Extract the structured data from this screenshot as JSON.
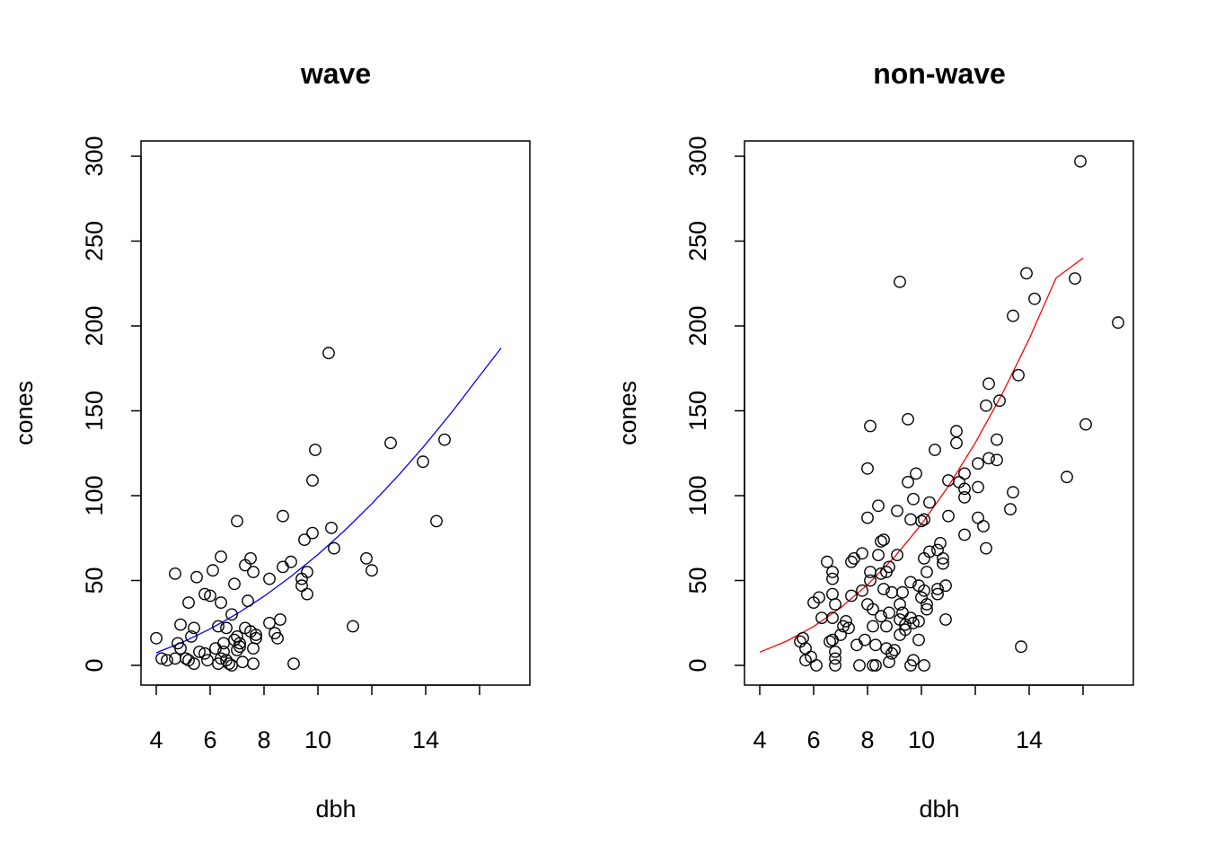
{
  "chart_data": [
    {
      "type": "scatter",
      "title": "wave",
      "xlabel": "dbh",
      "ylabel": "cones",
      "xlim": [
        4,
        17.4
      ],
      "ylim": [
        0,
        300
      ],
      "x_ticks": [
        4,
        6,
        8,
        10,
        14
      ],
      "y_ticks": [
        0,
        50,
        100,
        150,
        200,
        250,
        300
      ],
      "grid": false,
      "legend": "none",
      "point_style": "open-circle",
      "fit_color": "#0000ff",
      "series": [
        {
          "points": [
            [
              4.0,
              16
            ],
            [
              4.2,
              4
            ],
            [
              4.4,
              3
            ],
            [
              4.7,
              4
            ],
            [
              4.8,
              13
            ],
            [
              4.9,
              10
            ],
            [
              4.7,
              54
            ],
            [
              4.9,
              24
            ],
            [
              5.1,
              4
            ],
            [
              5.2,
              37
            ],
            [
              5.3,
              17
            ],
            [
              5.4,
              22
            ],
            [
              5.5,
              52
            ],
            [
              5.6,
              8
            ],
            [
              5.4,
              1
            ],
            [
              5.2,
              3
            ],
            [
              5.8,
              7
            ],
            [
              5.9,
              3
            ],
            [
              5.8,
              42
            ],
            [
              6.0,
              41
            ],
            [
              6.1,
              56
            ],
            [
              6.2,
              10
            ],
            [
              6.3,
              23
            ],
            [
              6.4,
              64
            ],
            [
              6.4,
              37
            ],
            [
              6.5,
              13
            ],
            [
              6.5,
              8
            ],
            [
              6.6,
              22
            ],
            [
              6.6,
              3
            ],
            [
              6.7,
              1
            ],
            [
              6.8,
              30
            ],
            [
              6.9,
              48
            ],
            [
              7.0,
              85
            ],
            [
              6.9,
              15
            ],
            [
              7.0,
              9
            ],
            [
              7.1,
              11
            ],
            [
              7.2,
              2
            ],
            [
              7.3,
              22
            ],
            [
              7.3,
              59
            ],
            [
              7.4,
              38
            ],
            [
              7.5,
              63
            ],
            [
              7.6,
              55
            ],
            [
              7.7,
              16
            ],
            [
              7.6,
              10
            ],
            [
              7.6,
              1
            ],
            [
              7.5,
              20
            ],
            [
              7.7,
              18
            ],
            [
              6.3,
              1
            ],
            [
              6.4,
              4
            ],
            [
              6.8,
              0
            ],
            [
              7.0,
              17
            ],
            [
              7.1,
              13
            ],
            [
              8.2,
              25
            ],
            [
              8.2,
              51
            ],
            [
              8.4,
              19
            ],
            [
              8.5,
              16
            ],
            [
              8.6,
              27
            ],
            [
              8.7,
              88
            ],
            [
              8.7,
              58
            ],
            [
              9.0,
              61
            ],
            [
              9.1,
              1
            ],
            [
              9.4,
              47
            ],
            [
              9.4,
              51
            ],
            [
              9.5,
              74
            ],
            [
              9.6,
              42
            ],
            [
              9.6,
              55
            ],
            [
              9.8,
              78
            ],
            [
              9.8,
              109
            ],
            [
              9.9,
              127
            ],
            [
              10.4,
              184
            ],
            [
              10.5,
              81
            ],
            [
              10.6,
              69
            ],
            [
              11.3,
              23
            ],
            [
              11.8,
              63
            ],
            [
              12.0,
              56
            ],
            [
              12.7,
              131
            ],
            [
              13.9,
              120
            ],
            [
              14.4,
              85
            ],
            [
              14.7,
              133
            ]
          ]
        }
      ],
      "fit_curve": [
        [
          4.0,
          7.4
        ],
        [
          5.0,
          13.8
        ],
        [
          6.0,
          21.5
        ],
        [
          7.0,
          30.4
        ],
        [
          8.0,
          40.7
        ],
        [
          9.0,
          52.4
        ],
        [
          10.0,
          65.3
        ],
        [
          11.0,
          79.6
        ],
        [
          12.0,
          95.2
        ],
        [
          13.0,
          112.1
        ],
        [
          14.0,
          130.3
        ],
        [
          15.0,
          149.8
        ],
        [
          16.0,
          170.6
        ],
        [
          16.8,
          187.0
        ]
      ]
    },
    {
      "type": "scatter",
      "title": "non-wave",
      "xlabel": "dbh",
      "ylabel": "cones",
      "xlim": [
        4,
        17.4
      ],
      "ylim": [
        0,
        300
      ],
      "x_ticks": [
        4,
        6,
        8,
        10,
        14
      ],
      "y_ticks": [
        0,
        50,
        100,
        150,
        200,
        250,
        300
      ],
      "grid": false,
      "legend": "none",
      "point_style": "open-circle",
      "fit_color": "#ff0000",
      "series": [
        {
          "points": [
            [
              5.5,
              14
            ],
            [
              5.6,
              16
            ],
            [
              5.7,
              10
            ],
            [
              5.7,
              3
            ],
            [
              5.9,
              5
            ],
            [
              6.0,
              37
            ],
            [
              6.1,
              0
            ],
            [
              6.2,
              40
            ],
            [
              6.3,
              28
            ],
            [
              6.5,
              61
            ],
            [
              6.6,
              14
            ],
            [
              6.7,
              15
            ],
            [
              6.7,
              28
            ],
            [
              6.7,
              42
            ],
            [
              6.8,
              36
            ],
            [
              6.7,
              51
            ],
            [
              6.7,
              55
            ],
            [
              6.8,
              8
            ],
            [
              6.8,
              4
            ],
            [
              6.8,
              0
            ],
            [
              7.0,
              18
            ],
            [
              7.1,
              23
            ],
            [
              7.2,
              26
            ],
            [
              7.3,
              22
            ],
            [
              7.4,
              61
            ],
            [
              7.5,
              63
            ],
            [
              7.4,
              41
            ],
            [
              7.6,
              12
            ],
            [
              7.7,
              0
            ],
            [
              7.8,
              44
            ],
            [
              7.8,
              66
            ],
            [
              7.9,
              15
            ],
            [
              8.0,
              36
            ],
            [
              8.0,
              87
            ],
            [
              8.0,
              116
            ],
            [
              8.1,
              141
            ],
            [
              8.1,
              55
            ],
            [
              8.1,
              50
            ],
            [
              8.2,
              23
            ],
            [
              8.2,
              0
            ],
            [
              8.2,
              33
            ],
            [
              8.3,
              12
            ],
            [
              8.3,
              0
            ],
            [
              8.4,
              65
            ],
            [
              8.4,
              94
            ],
            [
              8.5,
              73
            ],
            [
              8.6,
              74
            ],
            [
              8.5,
              54
            ],
            [
              8.7,
              55
            ],
            [
              8.8,
              58
            ],
            [
              8.8,
              31
            ],
            [
              8.9,
              43
            ],
            [
              8.5,
              29
            ],
            [
              8.6,
              45
            ],
            [
              8.7,
              23
            ],
            [
              8.7,
              10
            ],
            [
              8.8,
              2
            ],
            [
              8.9,
              7
            ],
            [
              9.0,
              9
            ],
            [
              9.1,
              91
            ],
            [
              9.1,
              65
            ],
            [
              9.2,
              226
            ],
            [
              9.2,
              27
            ],
            [
              9.2,
              36
            ],
            [
              9.3,
              31
            ],
            [
              9.3,
              43
            ],
            [
              9.2,
              18
            ],
            [
              9.4,
              21
            ],
            [
              9.4,
              24
            ],
            [
              9.5,
              145
            ],
            [
              9.5,
              108
            ],
            [
              9.6,
              86
            ],
            [
              9.6,
              49
            ],
            [
              9.6,
              28
            ],
            [
              9.7,
              98
            ],
            [
              9.7,
              25
            ],
            [
              9.7,
              3
            ],
            [
              9.6,
              0
            ],
            [
              9.8,
              113
            ],
            [
              9.9,
              47
            ],
            [
              9.9,
              26
            ],
            [
              9.9,
              15
            ],
            [
              10.0,
              40
            ],
            [
              10.0,
              85
            ],
            [
              10.1,
              86
            ],
            [
              10.1,
              63
            ],
            [
              10.1,
              44
            ],
            [
              10.1,
              0
            ],
            [
              10.2,
              36
            ],
            [
              10.2,
              55
            ],
            [
              10.3,
              96
            ],
            [
              10.3,
              67
            ],
            [
              10.2,
              33
            ],
            [
              10.5,
              127
            ],
            [
              10.6,
              42
            ],
            [
              10.6,
              45
            ],
            [
              10.6,
              68
            ],
            [
              10.7,
              72
            ],
            [
              10.8,
              60
            ],
            [
              10.8,
              63
            ],
            [
              10.9,
              47
            ],
            [
              10.9,
              27
            ],
            [
              11.0,
              88
            ],
            [
              11.0,
              109
            ],
            [
              11.3,
              138
            ],
            [
              11.3,
              131
            ],
            [
              11.4,
              108
            ],
            [
              11.6,
              113
            ],
            [
              11.6,
              104
            ],
            [
              11.6,
              99
            ],
            [
              11.6,
              77
            ],
            [
              12.1,
              119
            ],
            [
              12.1,
              105
            ],
            [
              12.1,
              87
            ],
            [
              12.3,
              82
            ],
            [
              12.4,
              69
            ],
            [
              12.4,
              153
            ],
            [
              12.5,
              166
            ],
            [
              12.5,
              122
            ],
            [
              12.8,
              121
            ],
            [
              12.8,
              133
            ],
            [
              12.9,
              156
            ],
            [
              13.3,
              92
            ],
            [
              13.4,
              102
            ],
            [
              13.4,
              206
            ],
            [
              13.6,
              171
            ],
            [
              13.7,
              11
            ],
            [
              13.9,
              231
            ],
            [
              14.2,
              216
            ],
            [
              15.4,
              111
            ],
            [
              15.7,
              228
            ],
            [
              15.9,
              297
            ],
            [
              16.1,
              142
            ],
            [
              17.3,
              202
            ]
          ]
        }
      ],
      "fit_curve": [
        [
          4.0,
          7.8
        ],
        [
          5.0,
          14.3
        ],
        [
          6.0,
          22.9
        ],
        [
          7.0,
          33.9
        ],
        [
          8.0,
          47.5
        ],
        [
          9.0,
          63.8
        ],
        [
          10.0,
          83.1
        ],
        [
          11.0,
          105.5
        ],
        [
          12.0,
          131.1
        ],
        [
          13.0,
          160.0
        ],
        [
          14.0,
          192.4
        ],
        [
          15.0,
          228.3
        ],
        [
          16.0,
          240
        ]
      ]
    }
  ]
}
